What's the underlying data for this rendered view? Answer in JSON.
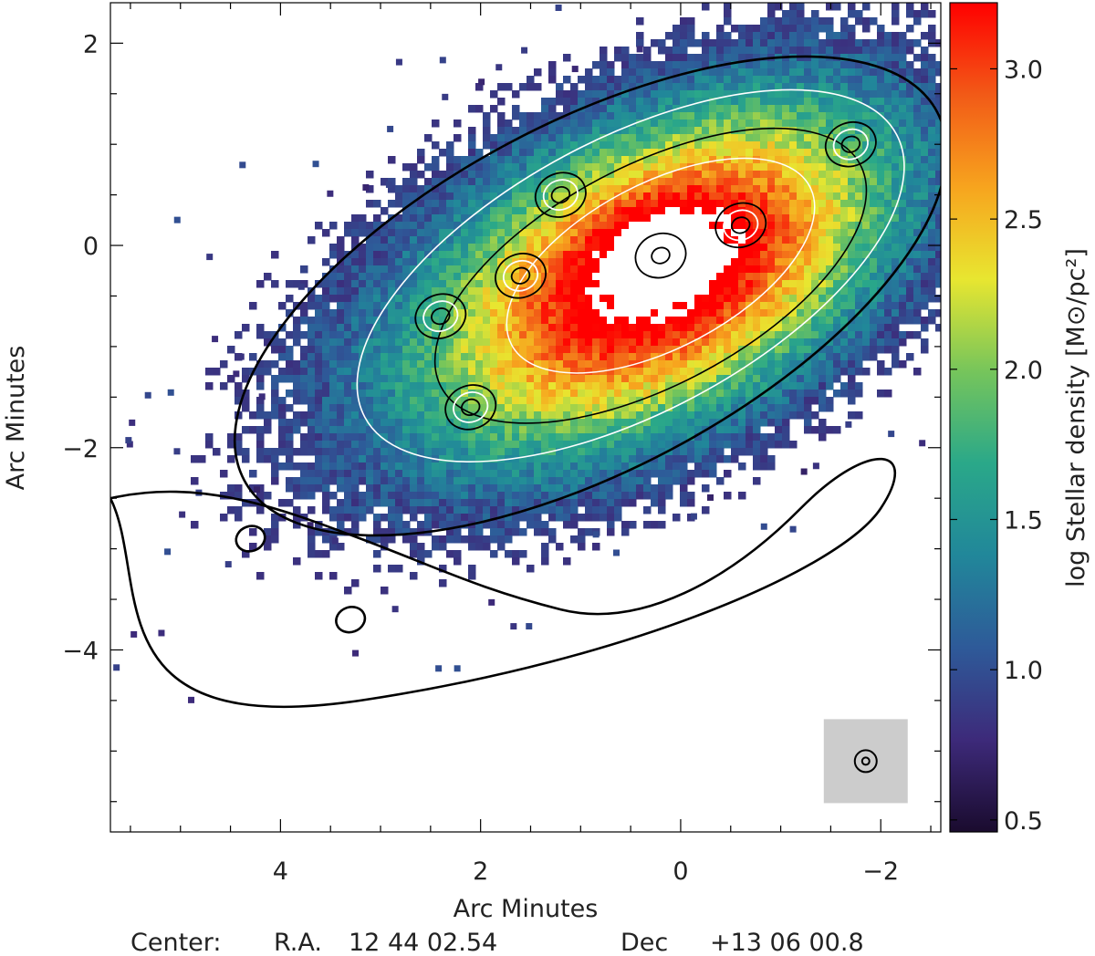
{
  "chart_data": {
    "type": "heatmap",
    "title": "",
    "xlabel": "Arc Minutes",
    "ylabel": "Arc Minutes",
    "x_ticks": [
      4,
      2,
      0,
      -2
    ],
    "x_tick_labels": [
      "4",
      "2",
      "0",
      "−2"
    ],
    "y_ticks": [
      2,
      0,
      -2,
      -4
    ],
    "y_tick_labels": [
      "2",
      "0",
      "−2",
      "−4"
    ],
    "xlim": [
      5.7,
      -2.6
    ],
    "ylim": [
      -5.8,
      2.4
    ],
    "x_reversed": true,
    "colorbar": {
      "label": "log Stellar density [M⊙/pc²]",
      "range": [
        0.46,
        3.22
      ],
      "ticks": [
        0.5,
        1.0,
        1.5,
        2.0,
        2.5,
        3.0
      ],
      "tick_labels": [
        "0.5",
        "1.0",
        "1.5",
        "2.0",
        "2.5",
        "3.0"
      ],
      "colormap": [
        "#1a0b2e",
        "#3d2a7a",
        "#2e5a99",
        "#21879a",
        "#2aa889",
        "#76c55b",
        "#e8e630",
        "#f7a41e",
        "#f25a17",
        "#ff0000"
      ]
    },
    "density_components": [
      {
        "x": 0.1,
        "y": -0.25,
        "sx": 1.7,
        "sy": 0.95,
        "angle_deg": 28,
        "amp": 2.35
      },
      {
        "x": 0.2,
        "y": -0.1,
        "sx": 0.45,
        "sy": 0.32,
        "angle_deg": 20,
        "amp": 0.85
      },
      {
        "x": 0.9,
        "y": -0.5,
        "sx": 3.0,
        "sy": 1.45,
        "angle_deg": 28,
        "amp": 1.0
      }
    ],
    "contour_levels": 6,
    "contour_peaks": [
      {
        "x": 2.4,
        "y": -0.7
      },
      {
        "x": 2.1,
        "y": -1.6
      },
      {
        "x": 1.6,
        "y": -0.3
      },
      {
        "x": 1.2,
        "y": 0.5
      },
      {
        "x": 0.2,
        "y": -0.1
      },
      {
        "x": -0.6,
        "y": 0.2
      },
      {
        "x": -1.7,
        "y": 1.0
      },
      {
        "x": 4.3,
        "y": -2.9
      },
      {
        "x": 3.3,
        "y": -3.7
      }
    ],
    "beam_inset": {
      "x": -1.85,
      "y": -5.1
    },
    "footer": {
      "center_label": "Center:",
      "ra_label": "R.A.",
      "ra_value": "12 44 02.54",
      "dec_label": "Dec",
      "dec_value": "+13 06 00.8"
    }
  }
}
